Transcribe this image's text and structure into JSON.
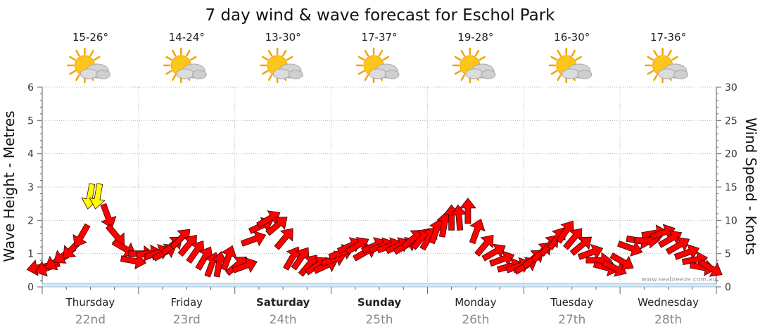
{
  "title": "7 day wind & wave forecast for Eschol Park",
  "days": [
    {
      "name": "Thursday",
      "date": "22nd",
      "temp": "15-26°",
      "bold": false,
      "icon": "sun-cloud-icon"
    },
    {
      "name": "Friday",
      "date": "23rd",
      "temp": "14-24°",
      "bold": false,
      "icon": "sun-cloud-icon"
    },
    {
      "name": "Saturday",
      "date": "24th",
      "temp": "13-30°",
      "bold": true,
      "icon": "sun-cloud-icon"
    },
    {
      "name": "Sunday",
      "date": "25th",
      "temp": "17-37°",
      "bold": true,
      "icon": "sun-cloud-icon"
    },
    {
      "name": "Monday",
      "date": "26th",
      "temp": "19-28°",
      "bold": false,
      "icon": "sun-cloud-icon"
    },
    {
      "name": "Tuesday",
      "date": "27th",
      "temp": "16-30°",
      "bold": false,
      "icon": "sun-cloud-icon"
    },
    {
      "name": "Wednesday",
      "date": "28th",
      "temp": "17-36°",
      "bold": false,
      "icon": "sun-cloud-icon"
    }
  ],
  "credit": "www.seabreeze.com.au",
  "colors": {
    "arrow": "#ff0000",
    "arrow_strong": "#ffff00",
    "grid": "#bbbbbb",
    "wave_fill": "#d6e8f5"
  },
  "chart_data": {
    "type": "line",
    "xlabel": "",
    "ylabel": "Wave Height - Metres",
    "y2label": "Wind Speed - Knots",
    "ylim": [
      0,
      6
    ],
    "y2lim": [
      0,
      30
    ],
    "yticks": [
      "0",
      "1",
      "2",
      "3",
      "4",
      "5",
      "6"
    ],
    "y2ticks": [
      "0",
      "5",
      "10",
      "15",
      "20",
      "25",
      "30"
    ],
    "categories": [
      "Thursday 22nd",
      "Friday 23rd",
      "Saturday 24th",
      "Sunday 25th",
      "Monday 26th",
      "Tuesday 27th",
      "Wednesday 28th"
    ],
    "grid": true,
    "legend": "none",
    "series": [
      {
        "unit": "knots",
        "x_day": [
          0.0,
          0.08,
          0.17,
          0.25,
          0.33,
          0.42,
          0.5,
          0.58,
          0.67,
          0.75,
          0.83,
          0.92,
          1.0,
          1.08,
          1.17,
          1.25,
          1.33,
          1.42,
          1.5,
          1.58,
          1.67,
          1.75,
          1.83,
          1.92,
          2.0,
          2.08,
          2.17,
          2.25,
          2.33,
          2.42,
          2.5,
          2.58,
          2.67,
          2.75,
          2.83,
          2.92,
          3.0,
          3.08,
          3.17,
          3.25,
          3.33,
          3.42,
          3.5,
          3.58,
          3.67,
          3.75,
          3.83,
          3.92,
          4.0,
          4.08,
          4.17,
          4.25,
          4.33,
          4.42,
          4.5,
          4.58,
          4.67,
          4.75,
          4.83,
          4.92,
          5.0,
          5.08,
          5.17,
          5.25,
          5.33,
          5.42,
          5.5,
          5.58,
          5.67,
          5.75,
          5.83,
          5.92,
          6.0,
          6.08,
          6.17,
          6.25,
          6.33,
          6.42,
          6.5,
          6.58,
          6.67,
          6.75,
          6.83,
          6.92
        ],
        "speed": [
          3,
          3,
          4,
          5,
          6,
          8,
          14,
          14,
          11,
          8,
          6,
          4,
          5,
          5,
          5,
          5,
          6,
          7,
          6,
          5,
          4,
          3,
          3,
          4,
          3,
          3,
          7,
          9,
          10,
          9,
          7,
          4,
          4,
          3,
          3,
          3,
          4,
          5,
          6,
          6,
          5,
          6,
          6,
          6,
          6,
          6,
          7,
          7,
          7,
          8,
          9,
          10,
          10,
          11,
          8,
          6,
          5,
          4,
          3,
          3,
          3,
          4,
          5,
          6,
          7,
          8,
          7,
          6,
          5,
          4,
          3,
          3,
          4,
          6,
          7,
          7,
          8,
          8,
          7,
          6,
          5,
          4,
          3,
          3
        ],
        "dir_deg": [
          80,
          70,
          60,
          55,
          45,
          30,
          10,
          10,
          340,
          320,
          300,
          280,
          270,
          260,
          250,
          240,
          230,
          225,
          220,
          215,
          210,
          200,
          190,
          200,
          230,
          250,
          250,
          245,
          240,
          230,
          220,
          210,
          215,
          220,
          235,
          245,
          250,
          250,
          245,
          240,
          240,
          245,
          250,
          250,
          245,
          240,
          230,
          220,
          210,
          200,
          190,
          180,
          175,
          180,
          200,
          220,
          240,
          250,
          255,
          250,
          240,
          230,
          225,
          220,
          215,
          215,
          220,
          230,
          250,
          270,
          285,
          295,
          300,
          290,
          280,
          270,
          260,
          250,
          240,
          240,
          250,
          260,
          280,
          300
        ]
      },
      {
        "unit": "metres",
        "name": "",
        "values": [
          0.1,
          0.1,
          0.1,
          0.1,
          0.1,
          0.1,
          0.1
        ]
      }
    ]
  }
}
